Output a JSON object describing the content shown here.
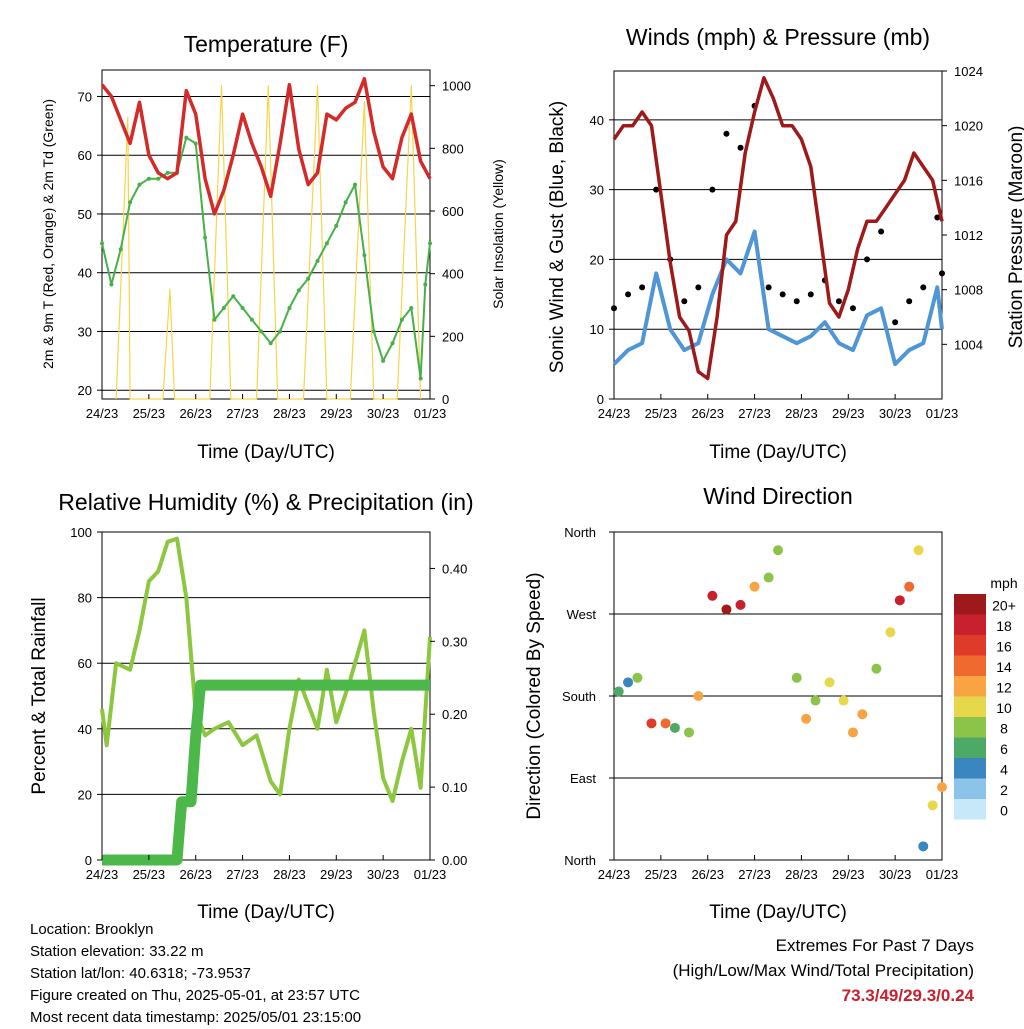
{
  "x_ticks": [
    "24/23",
    "25/23",
    "26/23",
    "27/23",
    "28/23",
    "29/23",
    "30/23",
    "01/23"
  ],
  "info": {
    "location": "Location: Brooklyn",
    "elevation": "Station elevation: 33.22 m",
    "latlon": "Station lat/lon: 40.6318; -73.9537",
    "created": "Figure created on Thu, 2025-05-01, at 23:57 UTC",
    "latest": "Most recent data timestamp: 2025/05/01 23:15:00"
  },
  "extremes": {
    "title": "Extremes For Past 7 Days",
    "subtitle": "(High/Low/Max Wind/Total Precipitation)",
    "values": "73.3/49/29.3/0.24"
  },
  "chart_data": [
    {
      "type": "line",
      "title": "Temperature (F)",
      "xlabel": "Time (Day/UTC)",
      "ylabel": "2m & 9m T (Red, Orange) & 2m Td (Green)",
      "ylabel_right": "Solar Insolation (Yellow)",
      "ylim": [
        18.5,
        74.5
      ],
      "yticks": [
        20,
        30,
        40,
        50,
        60,
        70
      ],
      "ylim_right": [
        0,
        1050
      ],
      "yticks_right": [
        0,
        200,
        400,
        600,
        800,
        1000
      ],
      "colors": {
        "temp": "#d42a2a",
        "dew": "#47b048",
        "solar": "#f6d54a"
      },
      "series": [
        {
          "key": "temp",
          "x": [
            0,
            0.2,
            0.4,
            0.6,
            0.8,
            1.0,
            1.2,
            1.4,
            1.6,
            1.8,
            2.0,
            2.2,
            2.4,
            2.6,
            2.8,
            3.0,
            3.2,
            3.4,
            3.6,
            3.8,
            4.0,
            4.2,
            4.4,
            4.6,
            4.8,
            5.0,
            5.2,
            5.4,
            5.6,
            5.8,
            6.0,
            6.2,
            6.4,
            6.6,
            6.8,
            7.0
          ],
          "values": [
            72,
            70,
            66,
            62,
            69,
            60,
            57,
            56,
            57,
            71,
            67,
            56,
            50,
            54,
            60,
            67,
            62,
            58,
            53,
            62,
            72,
            61,
            55,
            57,
            67,
            66,
            68,
            69,
            73,
            64,
            58,
            56,
            63,
            67,
            59,
            56
          ]
        },
        {
          "key": "dew",
          "x": [
            0,
            0.2,
            0.4,
            0.6,
            0.8,
            1.0,
            1.2,
            1.4,
            1.6,
            1.8,
            2.0,
            2.2,
            2.4,
            2.6,
            2.8,
            3.0,
            3.2,
            3.4,
            3.6,
            3.8,
            4.0,
            4.2,
            4.4,
            4.6,
            4.8,
            5.0,
            5.2,
            5.4,
            5.6,
            5.8,
            6.0,
            6.2,
            6.4,
            6.6,
            6.8,
            6.9,
            7.0
          ],
          "values": [
            45,
            38,
            44,
            52,
            55,
            56,
            56,
            57,
            57,
            63,
            62,
            46,
            32,
            34,
            36,
            34,
            32,
            30,
            28,
            30,
            34,
            37,
            39,
            42,
            45,
            48,
            52,
            55,
            43,
            30,
            25,
            28,
            32,
            34,
            22,
            38,
            45
          ]
        },
        {
          "key": "solar",
          "x": [
            0.3,
            0.55,
            0.6,
            1.3,
            1.45,
            1.55,
            2.3,
            2.55,
            2.75,
            3.3,
            3.55,
            3.75,
            4.3,
            4.6,
            4.8,
            5.3,
            5.6,
            5.8,
            6.3,
            6.6,
            6.8
          ],
          "values": [
            0,
            900,
            0,
            0,
            350,
            0,
            0,
            1000,
            0,
            0,
            1000,
            0,
            0,
            1000,
            0,
            0,
            950,
            0,
            0,
            1000,
            0
          ]
        }
      ]
    },
    {
      "type": "scatter",
      "title": "Winds (mph) & Pressure (mb)",
      "xlabel": "Time (Day/UTC)",
      "ylabel": "Sonic Wind & Gust (Blue, Black)",
      "ylabel_right": "Station Pressure (Maroon)",
      "ylim": [
        0,
        47
      ],
      "yticks": [
        0,
        10,
        20,
        30,
        40
      ],
      "ylim_right": [
        1000,
        1024
      ],
      "yticks_right": [
        1004,
        1008,
        1012,
        1016,
        1020,
        1024
      ],
      "colors": {
        "wind": "#4f96d6",
        "gust": "#000000",
        "pressure": "#9e1a1a"
      },
      "series": [
        {
          "key": "wind",
          "x": [
            0,
            0.3,
            0.6,
            0.9,
            1.2,
            1.5,
            1.8,
            2.1,
            2.4,
            2.7,
            3.0,
            3.3,
            3.6,
            3.9,
            4.2,
            4.5,
            4.8,
            5.1,
            5.4,
            5.7,
            6.0,
            6.3,
            6.6,
            6.9,
            7.0
          ],
          "values": [
            5,
            7,
            8,
            18,
            10,
            7,
            8,
            15,
            20,
            18,
            24,
            10,
            9,
            8,
            9,
            11,
            8,
            7,
            12,
            13,
            5,
            7,
            8,
            16,
            10
          ]
        },
        {
          "key": "gust",
          "x": [
            0,
            0.3,
            0.6,
            0.9,
            1.2,
            1.5,
            1.8,
            2.1,
            2.4,
            2.7,
            3.0,
            3.3,
            3.6,
            3.9,
            4.2,
            4.5,
            4.8,
            5.1,
            5.4,
            5.7,
            6.0,
            6.3,
            6.6,
            6.9,
            7.0
          ],
          "values": [
            13,
            15,
            16,
            30,
            20,
            14,
            16,
            30,
            38,
            36,
            42,
            16,
            15,
            14,
            15,
            17,
            14,
            13,
            20,
            24,
            11,
            14,
            16,
            26,
            18
          ]
        },
        {
          "key": "pressure",
          "x": [
            0,
            0.2,
            0.4,
            0.6,
            0.8,
            1.0,
            1.2,
            1.4,
            1.6,
            1.8,
            2.0,
            2.2,
            2.4,
            2.6,
            2.8,
            3.0,
            3.2,
            3.4,
            3.6,
            3.8,
            4.0,
            4.2,
            4.4,
            4.6,
            4.8,
            5.0,
            5.2,
            5.4,
            5.6,
            5.8,
            6.0,
            6.2,
            6.4,
            6.6,
            6.8,
            7.0
          ],
          "values": [
            1019,
            1020,
            1020,
            1021,
            1020,
            1015,
            1010,
            1006,
            1005,
            1002,
            1001.5,
            1006,
            1012,
            1013,
            1018,
            1021,
            1023.5,
            1022,
            1020,
            1020,
            1019,
            1017,
            1012,
            1007,
            1006,
            1008,
            1011,
            1013,
            1013,
            1014,
            1015,
            1016,
            1018,
            1017,
            1016,
            1013
          ]
        }
      ]
    },
    {
      "type": "line",
      "title": "Relative Humidity (%) & Precipitation (in)",
      "xlabel": "Time (Day/UTC)",
      "ylabel": "Percent & Total Rainfall",
      "ylim": [
        0,
        100
      ],
      "yticks": [
        0,
        20,
        40,
        60,
        80,
        100
      ],
      "ylim_right": [
        0,
        0.45
      ],
      "yticks_right": [
        0.0,
        0.1,
        0.2,
        0.3,
        0.4
      ],
      "ytick_labels_right": [
        "0.00",
        "0.10",
        "0.20",
        "0.30",
        "0.40"
      ],
      "colors": {
        "rh": "#8dc63f",
        "precip": "#4cb84a"
      },
      "series": [
        {
          "key": "rh",
          "x": [
            0,
            0.1,
            0.3,
            0.6,
            0.8,
            1.0,
            1.2,
            1.4,
            1.6,
            1.8,
            2.0,
            2.2,
            2.4,
            2.7,
            3.0,
            3.3,
            3.6,
            3.8,
            4.0,
            4.2,
            4.6,
            4.8,
            5.0,
            5.3,
            5.6,
            5.8,
            6.0,
            6.2,
            6.4,
            6.6,
            6.8,
            7.0
          ],
          "values": [
            46,
            35,
            60,
            58,
            70,
            85,
            88,
            97,
            98,
            80,
            45,
            38,
            40,
            42,
            35,
            38,
            24,
            20,
            40,
            55,
            40,
            58,
            42,
            55,
            70,
            45,
            25,
            18,
            30,
            40,
            22,
            68
          ]
        },
        {
          "key": "precip",
          "x": [
            0,
            1.6,
            1.65,
            1.7,
            1.9,
            2.0,
            2.1,
            2.4,
            7.0
          ],
          "values": [
            0,
            0,
            0.04,
            0.08,
            0.08,
            0.17,
            0.24,
            0.24,
            0.24
          ]
        }
      ]
    },
    {
      "type": "scatter",
      "title": "Wind Direction",
      "xlabel": "Time (Day/UTC)",
      "ylabel": "Direction (Colored By Speed)",
      "yticks": [
        "North",
        "East",
        "South",
        "West",
        "North"
      ],
      "legend_title": "mph",
      "legend_labels": [
        "20+",
        "18",
        "16",
        "14",
        "12",
        "10",
        "8",
        "6",
        "4",
        "2",
        "0"
      ],
      "legend_colors": [
        "#9e1a1a",
        "#c8202e",
        "#df3b2a",
        "#f06a30",
        "#f8a442",
        "#e6d84a",
        "#8cc44a",
        "#4caa66",
        "#3a87c0",
        "#8bc4e8",
        "#c6e8f8"
      ],
      "legend_position": "right",
      "points": [
        {
          "x": 0.1,
          "dir": 185,
          "speed": 6
        },
        {
          "x": 0.3,
          "dir": 195,
          "speed": 4
        },
        {
          "x": 0.5,
          "dir": 200,
          "speed": 8
        },
        {
          "x": 0.8,
          "dir": 150,
          "speed": 16
        },
        {
          "x": 1.1,
          "dir": 150,
          "speed": 14
        },
        {
          "x": 1.3,
          "dir": 145,
          "speed": 6
        },
        {
          "x": 1.6,
          "dir": 140,
          "speed": 8
        },
        {
          "x": 1.8,
          "dir": 180,
          "speed": 12
        },
        {
          "x": 2.1,
          "dir": 290,
          "speed": 18
        },
        {
          "x": 2.4,
          "dir": 275,
          "speed": 20
        },
        {
          "x": 2.7,
          "dir": 280,
          "speed": 18
        },
        {
          "x": 3.0,
          "dir": 300,
          "speed": 12
        },
        {
          "x": 3.3,
          "dir": 310,
          "speed": 8
        },
        {
          "x": 3.5,
          "dir": 340,
          "speed": 8
        },
        {
          "x": 3.9,
          "dir": 200,
          "speed": 8
        },
        {
          "x": 4.1,
          "dir": 155,
          "speed": 12
        },
        {
          "x": 4.3,
          "dir": 175,
          "speed": 8
        },
        {
          "x": 4.6,
          "dir": 195,
          "speed": 10
        },
        {
          "x": 4.9,
          "dir": 175,
          "speed": 10
        },
        {
          "x": 5.1,
          "dir": 140,
          "speed": 12
        },
        {
          "x": 5.3,
          "dir": 160,
          "speed": 12
        },
        {
          "x": 5.6,
          "dir": 210,
          "speed": 8
        },
        {
          "x": 5.9,
          "dir": 250,
          "speed": 10
        },
        {
          "x": 6.1,
          "dir": 285,
          "speed": 18
        },
        {
          "x": 6.3,
          "dir": 300,
          "speed": 14
        },
        {
          "x": 6.5,
          "dir": 340,
          "speed": 10
        },
        {
          "x": 6.6,
          "dir": 15,
          "speed": 4
        },
        {
          "x": 6.8,
          "dir": 60,
          "speed": 10
        },
        {
          "x": 7.0,
          "dir": 80,
          "speed": 12
        }
      ]
    }
  ]
}
